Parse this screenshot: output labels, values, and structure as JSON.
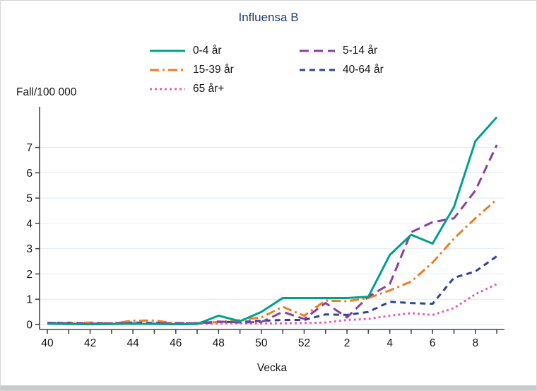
{
  "chart_data": {
    "type": "line",
    "title": "Influensa B",
    "ylabel": "Fall/100 000",
    "xlabel": "Vecka",
    "title_color": "#233A6D",
    "categories": [
      "40",
      "41",
      "42",
      "43",
      "44",
      "45",
      "46",
      "47",
      "48",
      "49",
      "50",
      "51",
      "52",
      "1",
      "2",
      "3",
      "4",
      "5",
      "6",
      "7",
      "8",
      "9"
    ],
    "x_label_every": 2,
    "yticks": [
      0,
      1,
      2,
      3,
      4,
      5,
      6,
      7
    ],
    "ylim": [
      0,
      8.6
    ],
    "grid": true,
    "legend_position": "top-center",
    "series": [
      {
        "name": "0-4-ar",
        "label": "0-4 år",
        "color": "#00A188",
        "dash": "",
        "legend_dash": "",
        "values": [
          0.03,
          0.02,
          0.01,
          0.02,
          0.03,
          0.02,
          0.01,
          0.02,
          0.35,
          0.13,
          0.5,
          1.05,
          1.05,
          1.05,
          1.05,
          1.1,
          2.75,
          3.55,
          3.2,
          4.65,
          7.25,
          8.2
        ]
      },
      {
        "name": "5-14-ar",
        "label": "5-14 år",
        "color": "#8A3FA0",
        "dash": "13 7",
        "legend_dash": "13 7",
        "values": [
          0.07,
          0.05,
          0.04,
          0.04,
          0.05,
          0.04,
          0.06,
          0.05,
          0.12,
          0.08,
          0.1,
          0.5,
          0.22,
          0.85,
          0.28,
          1.1,
          1.6,
          3.65,
          4.05,
          4.2,
          5.3,
          7.1
        ]
      },
      {
        "name": "15-39-ar",
        "label": "15-39 år",
        "color": "#F07C22",
        "dash": "13 5 3 5",
        "legend_dash": "13 5 3 5",
        "values": [
          0.05,
          0.04,
          0.08,
          0.05,
          0.15,
          0.16,
          0.05,
          0.06,
          0.1,
          0.18,
          0.28,
          0.7,
          0.35,
          0.95,
          0.92,
          1.05,
          1.35,
          1.7,
          2.45,
          3.4,
          4.2,
          4.95
        ]
      },
      {
        "name": "40-64-ar",
        "label": "40-64 år",
        "color": "#2B449A",
        "dash": "8 6",
        "legend_dash": "8 6",
        "values": [
          0.06,
          0.07,
          0.05,
          0.05,
          0.08,
          0.06,
          0.05,
          0.04,
          0.1,
          0.1,
          0.15,
          0.18,
          0.18,
          0.4,
          0.38,
          0.5,
          0.9,
          0.85,
          0.82,
          1.85,
          2.1,
          2.7
        ]
      },
      {
        "name": "65-ar-plus",
        "label": "65 år+",
        "color": "#EF5FA5",
        "dash": "3 4",
        "legend_dash": "3 4",
        "values": [
          0.03,
          0.02,
          0.03,
          0.02,
          0.03,
          0.04,
          0.02,
          0.03,
          0.04,
          0.05,
          0.04,
          0.05,
          0.06,
          0.08,
          0.18,
          0.22,
          0.35,
          0.45,
          0.38,
          0.65,
          1.2,
          1.6
        ]
      }
    ]
  }
}
